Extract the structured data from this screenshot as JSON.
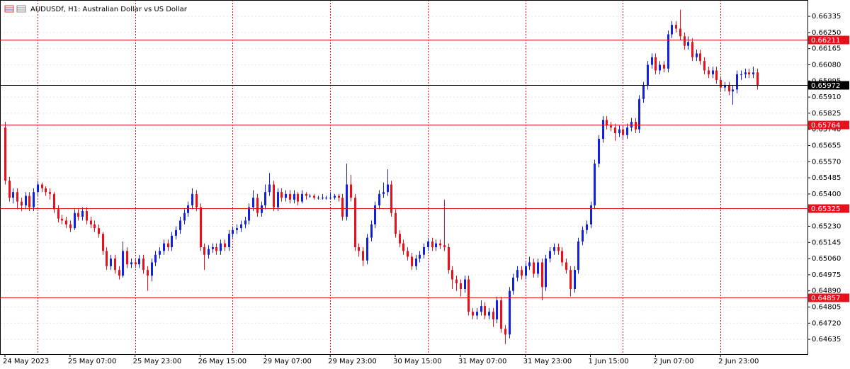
{
  "chart_data": {
    "type": "candlestick",
    "title": "AUDUSDf, H1:  Australian Dollar vs US Dollar",
    "up_color": "#1220e0",
    "down_color": "#e8111b",
    "grid": true,
    "ylim": [
      0.64557,
      0.66421
    ],
    "yticks": [
      0.66335,
      {
        "value": 0.6625,
        "label": "0.66250"
      },
      0.66165,
      {
        "value": 0.6608,
        "label": "0.66080"
      },
      0.65995,
      {
        "value": 0.6591,
        "label": "0.65910"
      },
      0.65825,
      {
        "value": 0.6574,
        "label": "0.65740"
      },
      0.65655,
      {
        "value": 0.6557,
        "label": "0.65570"
      },
      0.65485,
      {
        "value": 0.654,
        "label": "0.65400"
      },
      0.65315,
      {
        "value": 0.6523,
        "label": "0.65230"
      },
      0.65145,
      {
        "value": 0.6506,
        "label": "0.65060"
      },
      0.64975,
      {
        "value": 0.6489,
        "label": "0.64890"
      },
      0.64805,
      {
        "value": 0.6472,
        "label": "0.64720"
      },
      0.64635
    ],
    "xlim": [
      -1.22,
      197.4
    ],
    "xticks": [
      {
        "value": 0,
        "label": "24 May 2023"
      },
      {
        "value": 16,
        "label": "25 May 07:00"
      },
      {
        "value": 32,
        "label": "25 May 23:00"
      },
      {
        "value": 48,
        "label": "26 May 15:00"
      },
      {
        "value": 64,
        "label": "29 May 07:00"
      },
      {
        "value": 80,
        "label": "29 May 23:00"
      },
      {
        "value": 96,
        "label": "30 May 15:00"
      },
      {
        "value": 112,
        "label": "31 May 07:00"
      },
      {
        "value": 128,
        "label": "31 May 23:00"
      },
      {
        "value": 144,
        "label": "1 Jun 15:00"
      },
      {
        "value": 160,
        "label": "2 Jun 07:00"
      },
      {
        "value": 176,
        "label": "2 Jun 23:00"
      }
    ],
    "xgrid": [
      8,
      32,
      56,
      80,
      104,
      128,
      152,
      176
    ],
    "xgrid_color": "#e8111b",
    "levels": [
      {
        "value": 0.66211,
        "color": "#e8111b"
      },
      {
        "value": 0.65972,
        "color": "#000000"
      },
      {
        "value": 0.65764,
        "color": "#e8111b"
      },
      {
        "value": 0.65325,
        "color": "#e8111b"
      },
      {
        "value": 0.64857,
        "color": "#e8111b"
      }
    ],
    "ohlc": [
      [
        0.6575,
        0.6578,
        0.6545,
        0.6547
      ],
      [
        0.6547,
        0.6549,
        0.6536,
        0.6538
      ],
      [
        0.6538,
        0.6543,
        0.6535,
        0.6541
      ],
      [
        0.6541,
        0.6543,
        0.6532,
        0.6536
      ],
      [
        0.6536,
        0.6538,
        0.6531,
        0.6534
      ],
      [
        0.6534,
        0.6541,
        0.6532,
        0.6539
      ],
      [
        0.6539,
        0.6541,
        0.6531,
        0.6533
      ],
      [
        0.6533,
        0.6543,
        0.6531,
        0.6541
      ],
      [
        0.6541,
        0.6547,
        0.6539,
        0.6545
      ],
      [
        0.6545,
        0.6546,
        0.6541,
        0.6543
      ],
      [
        0.6543,
        0.6544,
        0.6539,
        0.6541
      ],
      [
        0.6541,
        0.6543,
        0.6537,
        0.654
      ],
      [
        0.654,
        0.6541,
        0.653,
        0.6532
      ],
      [
        0.6532,
        0.6534,
        0.6525,
        0.6527
      ],
      [
        0.6527,
        0.6529,
        0.6524,
        0.6526
      ],
      [
        0.6526,
        0.6528,
        0.6522,
        0.6524
      ],
      [
        0.6524,
        0.6526,
        0.652,
        0.6522
      ],
      [
        0.6522,
        0.6532,
        0.6521,
        0.653
      ],
      [
        0.653,
        0.6532,
        0.6526,
        0.6528
      ],
      [
        0.6528,
        0.6533,
        0.6526,
        0.6531
      ],
      [
        0.6531,
        0.6533,
        0.6524,
        0.6526
      ],
      [
        0.6526,
        0.6528,
        0.6522,
        0.6524
      ],
      [
        0.6524,
        0.6526,
        0.652,
        0.6522
      ],
      [
        0.6522,
        0.6524,
        0.6517,
        0.6519
      ],
      [
        0.6519,
        0.652,
        0.6508,
        0.651
      ],
      [
        0.651,
        0.6512,
        0.65,
        0.6502
      ],
      [
        0.6502,
        0.6508,
        0.65,
        0.6506
      ],
      [
        0.6506,
        0.6508,
        0.6498,
        0.65
      ],
      [
        0.65,
        0.6502,
        0.6495,
        0.6497
      ],
      [
        0.6497,
        0.6515,
        0.6496,
        0.651
      ],
      [
        0.651,
        0.6512,
        0.6501,
        0.6503
      ],
      [
        0.6503,
        0.6506,
        0.6501,
        0.6504
      ],
      [
        0.6504,
        0.6506,
        0.6501,
        0.6503
      ],
      [
        0.6503,
        0.6508,
        0.6501,
        0.6506
      ],
      [
        0.6506,
        0.6508,
        0.6498,
        0.65
      ],
      [
        0.65,
        0.6502,
        0.6489,
        0.6497
      ],
      [
        0.6497,
        0.6506,
        0.6494,
        0.6504
      ],
      [
        0.6504,
        0.651,
        0.6502,
        0.6508
      ],
      [
        0.6508,
        0.6512,
        0.6506,
        0.651
      ],
      [
        0.651,
        0.6516,
        0.6508,
        0.6514
      ],
      [
        0.6514,
        0.6516,
        0.651,
        0.6512
      ],
      [
        0.6512,
        0.652,
        0.651,
        0.6518
      ],
      [
        0.6518,
        0.6523,
        0.6516,
        0.6521
      ],
      [
        0.6521,
        0.6528,
        0.6519,
        0.6526
      ],
      [
        0.6526,
        0.6532,
        0.6524,
        0.653
      ],
      [
        0.653,
        0.6536,
        0.6528,
        0.6534
      ],
      [
        0.6534,
        0.6543,
        0.6532,
        0.654
      ],
      [
        0.654,
        0.6542,
        0.6531,
        0.6533
      ],
      [
        0.6533,
        0.6535,
        0.651,
        0.6512
      ],
      [
        0.6512,
        0.6514,
        0.65,
        0.6508
      ],
      [
        0.6508,
        0.6513,
        0.6506,
        0.6511
      ],
      [
        0.6511,
        0.6514,
        0.6509,
        0.6512
      ],
      [
        0.6512,
        0.6514,
        0.6508,
        0.651
      ],
      [
        0.651,
        0.6516,
        0.6508,
        0.6514
      ],
      [
        0.6514,
        0.6516,
        0.651,
        0.6512
      ],
      [
        0.6512,
        0.6521,
        0.651,
        0.6519
      ],
      [
        0.6519,
        0.6523,
        0.6517,
        0.6521
      ],
      [
        0.6521,
        0.6524,
        0.6519,
        0.6522
      ],
      [
        0.6522,
        0.6526,
        0.652,
        0.6524
      ],
      [
        0.6524,
        0.6528,
        0.6522,
        0.6526
      ],
      [
        0.6526,
        0.6535,
        0.6524,
        0.6533
      ],
      [
        0.6533,
        0.6542,
        0.6531,
        0.6538
      ],
      [
        0.6538,
        0.654,
        0.6528,
        0.653
      ],
      [
        0.653,
        0.6536,
        0.6528,
        0.6534
      ],
      [
        0.6534,
        0.6545,
        0.6532,
        0.6541
      ],
      [
        0.6541,
        0.6551,
        0.6539,
        0.6545
      ],
      [
        0.6545,
        0.6547,
        0.6531,
        0.6533
      ],
      [
        0.6533,
        0.6543,
        0.6531,
        0.6541
      ],
      [
        0.6541,
        0.6543,
        0.6536,
        0.6538
      ],
      [
        0.6538,
        0.6542,
        0.6536,
        0.654
      ],
      [
        0.654,
        0.6542,
        0.6535,
        0.6537
      ],
      [
        0.6537,
        0.6542,
        0.6535,
        0.654
      ],
      [
        0.654,
        0.6541,
        0.6534,
        0.6536
      ],
      [
        0.6536,
        0.6542,
        0.6535,
        0.654
      ],
      [
        0.654,
        0.6541,
        0.6537,
        0.6539
      ],
      [
        0.6539,
        0.654,
        0.6538,
        0.6539
      ],
      [
        0.6539,
        0.654,
        0.6537,
        0.6538
      ],
      [
        0.6538,
        0.6539,
        0.6537,
        0.6538
      ],
      [
        0.6538,
        0.654,
        0.6537,
        0.6538
      ],
      [
        0.6538,
        0.6539,
        0.6537,
        0.6538
      ],
      [
        0.6538,
        0.6541,
        0.6537,
        0.6538
      ],
      [
        0.6538,
        0.654,
        0.6537,
        0.6539
      ],
      [
        0.6539,
        0.654,
        0.6536,
        0.6538
      ],
      [
        0.6538,
        0.654,
        0.6526,
        0.6528
      ],
      [
        0.6528,
        0.6556,
        0.6526,
        0.6545
      ],
      [
        0.6545,
        0.655,
        0.6536,
        0.6538
      ],
      [
        0.6538,
        0.654,
        0.651,
        0.6512
      ],
      [
        0.6512,
        0.6514,
        0.6507,
        0.651
      ],
      [
        0.651,
        0.6512,
        0.6502,
        0.6505
      ],
      [
        0.6505,
        0.6519,
        0.6503,
        0.6517
      ],
      [
        0.6517,
        0.6526,
        0.6515,
        0.6524
      ],
      [
        0.6524,
        0.6536,
        0.6522,
        0.6534
      ],
      [
        0.6534,
        0.6542,
        0.6532,
        0.654
      ],
      [
        0.654,
        0.6546,
        0.6538,
        0.6541
      ],
      [
        0.6541,
        0.6553,
        0.6539,
        0.6545
      ],
      [
        0.6545,
        0.6547,
        0.6528,
        0.653
      ],
      [
        0.653,
        0.6532,
        0.6517,
        0.6519
      ],
      [
        0.6519,
        0.6521,
        0.6512,
        0.6514
      ],
      [
        0.6514,
        0.6516,
        0.6508,
        0.651
      ],
      [
        0.651,
        0.6512,
        0.6505,
        0.6507
      ],
      [
        0.6507,
        0.6509,
        0.65,
        0.6502
      ],
      [
        0.6502,
        0.6508,
        0.65,
        0.6506
      ],
      [
        0.6506,
        0.651,
        0.6504,
        0.6508
      ],
      [
        0.6508,
        0.6514,
        0.6506,
        0.6512
      ],
      [
        0.6512,
        0.6517,
        0.651,
        0.6515
      ],
      [
        0.6515,
        0.6517,
        0.651,
        0.6512
      ],
      [
        0.6512,
        0.6516,
        0.651,
        0.6514
      ],
      [
        0.6514,
        0.6516,
        0.6511,
        0.6513
      ],
      [
        0.6513,
        0.6537,
        0.651,
        0.6512
      ],
      [
        0.6512,
        0.6514,
        0.6498,
        0.65
      ],
      [
        0.65,
        0.6502,
        0.649,
        0.6495
      ],
      [
        0.6495,
        0.6497,
        0.6489,
        0.6493
      ],
      [
        0.6493,
        0.6495,
        0.6486,
        0.649
      ],
      [
        0.649,
        0.6497,
        0.6488,
        0.6495
      ],
      [
        0.6495,
        0.6497,
        0.6476,
        0.6478
      ],
      [
        0.6478,
        0.648,
        0.6474,
        0.6476
      ],
      [
        0.6476,
        0.648,
        0.6474,
        0.6478
      ],
      [
        0.6478,
        0.6484,
        0.6476,
        0.6481
      ],
      [
        0.6481,
        0.6483,
        0.6474,
        0.6476
      ],
      [
        0.6476,
        0.648,
        0.6474,
        0.6478
      ],
      [
        0.6478,
        0.648,
        0.647,
        0.6474
      ],
      [
        0.6474,
        0.6486,
        0.6472,
        0.6484
      ],
      [
        0.6484,
        0.6486,
        0.6467,
        0.6469
      ],
      [
        0.6469,
        0.6471,
        0.6461,
        0.6466
      ],
      [
        0.6466,
        0.6491,
        0.6464,
        0.6489
      ],
      [
        0.6489,
        0.6498,
        0.6487,
        0.6496
      ],
      [
        0.6496,
        0.6502,
        0.6494,
        0.65
      ],
      [
        0.65,
        0.6502,
        0.6495,
        0.6497
      ],
      [
        0.6497,
        0.6504,
        0.6495,
        0.6502
      ],
      [
        0.6502,
        0.6507,
        0.65,
        0.6504
      ],
      [
        0.6504,
        0.6506,
        0.6496,
        0.6498
      ],
      [
        0.6498,
        0.6506,
        0.6496,
        0.6504
      ],
      [
        0.6504,
        0.6506,
        0.6484,
        0.6491
      ],
      [
        0.6491,
        0.6508,
        0.6489,
        0.6506
      ],
      [
        0.6506,
        0.6512,
        0.6504,
        0.651
      ],
      [
        0.651,
        0.6514,
        0.6508,
        0.6512
      ],
      [
        0.6512,
        0.6514,
        0.6508,
        0.651
      ],
      [
        0.651,
        0.6512,
        0.6502,
        0.6504
      ],
      [
        0.6504,
        0.6506,
        0.6498,
        0.65
      ],
      [
        0.65,
        0.6502,
        0.6486,
        0.649
      ],
      [
        0.649,
        0.6502,
        0.6488,
        0.65
      ],
      [
        0.65,
        0.6517,
        0.6498,
        0.6515
      ],
      [
        0.6515,
        0.6523,
        0.6513,
        0.6521
      ],
      [
        0.6521,
        0.6526,
        0.6519,
        0.6524
      ],
      [
        0.6524,
        0.6536,
        0.6522,
        0.6534
      ],
      [
        0.6534,
        0.6558,
        0.6532,
        0.6556
      ],
      [
        0.6556,
        0.6571,
        0.6554,
        0.6569
      ],
      [
        0.6569,
        0.6581,
        0.6567,
        0.6579
      ],
      [
        0.6579,
        0.6581,
        0.6574,
        0.6576
      ],
      [
        0.6576,
        0.6578,
        0.6573,
        0.6575
      ],
      [
        0.6575,
        0.6577,
        0.6568,
        0.6572
      ],
      [
        0.6572,
        0.6576,
        0.657,
        0.6574
      ],
      [
        0.6574,
        0.6576,
        0.6569,
        0.6571
      ],
      [
        0.6571,
        0.6577,
        0.6569,
        0.6575
      ],
      [
        0.6575,
        0.658,
        0.6573,
        0.6578
      ],
      [
        0.6578,
        0.658,
        0.6572,
        0.6574
      ],
      [
        0.6574,
        0.6592,
        0.6572,
        0.659
      ],
      [
        0.659,
        0.6599,
        0.6588,
        0.6597
      ],
      [
        0.6597,
        0.661,
        0.6595,
        0.6608
      ],
      [
        0.6608,
        0.6614,
        0.6606,
        0.6612
      ],
      [
        0.6612,
        0.6614,
        0.6603,
        0.6605
      ],
      [
        0.6605,
        0.661,
        0.6603,
        0.6608
      ],
      [
        0.6608,
        0.661,
        0.6604,
        0.6606
      ],
      [
        0.6606,
        0.6626,
        0.6604,
        0.6624
      ],
      [
        0.6624,
        0.6631,
        0.6622,
        0.6629
      ],
      [
        0.6629,
        0.6631,
        0.6625,
        0.6627
      ],
      [
        0.6627,
        0.6637,
        0.6621,
        0.6623
      ],
      [
        0.6623,
        0.6625,
        0.6616,
        0.6618
      ],
      [
        0.6618,
        0.6623,
        0.6616,
        0.662
      ],
      [
        0.662,
        0.6622,
        0.661,
        0.6612
      ],
      [
        0.6612,
        0.6616,
        0.661,
        0.6614
      ],
      [
        0.6614,
        0.6616,
        0.6608,
        0.661
      ],
      [
        0.661,
        0.6612,
        0.6603,
        0.6605
      ],
      [
        0.6605,
        0.6607,
        0.6601,
        0.6603
      ],
      [
        0.6603,
        0.6607,
        0.6601,
        0.6605
      ],
      [
        0.6605,
        0.6607,
        0.6598,
        0.66
      ],
      [
        0.66,
        0.6602,
        0.6594,
        0.6596
      ],
      [
        0.6596,
        0.6599,
        0.6594,
        0.6597
      ],
      [
        0.6597,
        0.6599,
        0.6592,
        0.6594
      ],
      [
        0.6594,
        0.6597,
        0.6587,
        0.6595
      ],
      [
        0.6595,
        0.6605,
        0.6593,
        0.6603
      ],
      [
        0.6603,
        0.6605,
        0.66,
        0.6603
      ],
      [
        0.6603,
        0.6606,
        0.6601,
        0.6604
      ],
      [
        0.6604,
        0.6606,
        0.6601,
        0.6603
      ],
      [
        0.6603,
        0.6607,
        0.6601,
        0.6604
      ],
      [
        0.6604,
        0.6606,
        0.6595,
        0.6597
      ]
    ]
  }
}
